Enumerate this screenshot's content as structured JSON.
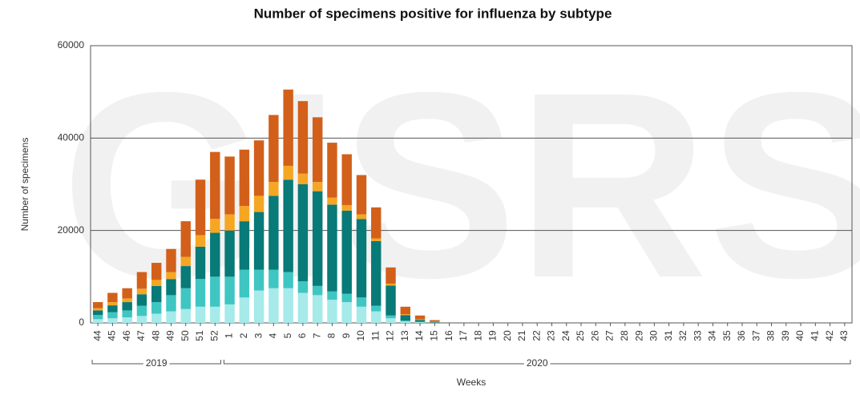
{
  "chart_data": {
    "type": "bar",
    "stacked": true,
    "title": "Number of specimens positive for influenza by subtype",
    "watermark": "GISRS",
    "y_label": "Number of specimens",
    "x_label": "Weeks",
    "year_groups": [
      {
        "label": "2019",
        "from": 0,
        "to": 8
      },
      {
        "label": "2020",
        "from": 9,
        "to": 51
      }
    ],
    "categories": [
      "44",
      "45",
      "46",
      "47",
      "48",
      "49",
      "50",
      "51",
      "52",
      "1",
      "2",
      "3",
      "4",
      "5",
      "6",
      "7",
      "8",
      "9",
      "10",
      "11",
      "12",
      "13",
      "14",
      "15",
      "16",
      "17",
      "18",
      "19",
      "20",
      "21",
      "22",
      "23",
      "24",
      "25",
      "26",
      "27",
      "28",
      "29",
      "30",
      "31",
      "32",
      "33",
      "34",
      "35",
      "36",
      "37",
      "38",
      "39",
      "40",
      "41",
      "42",
      "43"
    ],
    "series": [
      {
        "color": "#a6eaea",
        "values": [
          800,
          1000,
          1200,
          1500,
          2000,
          2500,
          3000,
          3500,
          3500,
          4000,
          5500,
          7000,
          7500,
          7500,
          6500,
          6000,
          5000,
          4500,
          3500,
          2500,
          1000,
          300,
          150,
          50,
          0,
          0,
          0,
          0,
          0,
          0,
          0,
          0,
          0,
          0,
          0,
          0,
          0,
          0,
          0,
          0,
          0,
          0,
          0,
          0,
          0,
          0,
          0,
          0,
          0,
          0,
          0,
          0
        ]
      },
      {
        "color": "#3fc6c2",
        "values": [
          900,
          1300,
          1500,
          2200,
          2500,
          3500,
          4500,
          6000,
          6500,
          6000,
          6000,
          4500,
          4000,
          3500,
          2500,
          2000,
          1800,
          1800,
          2000,
          1200,
          600,
          200,
          100,
          50,
          0,
          0,
          0,
          0,
          0,
          0,
          0,
          0,
          0,
          0,
          0,
          0,
          0,
          0,
          0,
          0,
          0,
          0,
          0,
          0,
          0,
          0,
          0,
          0,
          0,
          0,
          0,
          0
        ]
      },
      {
        "color": "#087a78",
        "values": [
          1000,
          1500,
          1800,
          2500,
          3500,
          3500,
          4800,
          7000,
          9500,
          10000,
          10500,
          12500,
          16000,
          20000,
          21000,
          20500,
          18800,
          18000,
          17000,
          14000,
          6500,
          1200,
          400,
          100,
          0,
          0,
          0,
          0,
          0,
          0,
          0,
          0,
          0,
          0,
          0,
          0,
          0,
          0,
          0,
          0,
          0,
          0,
          0,
          0,
          0,
          0,
          0,
          0,
          0,
          0,
          0,
          0
        ]
      },
      {
        "color": "#f5a623",
        "values": [
          500,
          700,
          800,
          1200,
          1300,
          1500,
          2000,
          2500,
          3000,
          3500,
          3300,
          3500,
          3000,
          3000,
          2300,
          2000,
          1500,
          1200,
          1000,
          600,
          400,
          200,
          100,
          50,
          0,
          0,
          0,
          0,
          0,
          0,
          0,
          0,
          0,
          0,
          0,
          0,
          0,
          0,
          0,
          0,
          0,
          0,
          0,
          0,
          0,
          0,
          0,
          0,
          0,
          0,
          0,
          0
        ]
      },
      {
        "color": "#d2601a",
        "values": [
          1300,
          2000,
          2200,
          3600,
          3700,
          5000,
          7700,
          12000,
          14500,
          12500,
          12200,
          12000,
          14500,
          16500,
          15700,
          14000,
          11900,
          11000,
          8500,
          6700,
          3500,
          1600,
          850,
          350,
          0,
          0,
          0,
          0,
          0,
          0,
          0,
          0,
          0,
          0,
          0,
          0,
          0,
          0,
          0,
          0,
          0,
          0,
          0,
          0,
          0,
          0,
          0,
          0,
          0,
          0,
          0,
          0
        ]
      }
    ],
    "ylim": [
      0,
      60000
    ],
    "yticks": [
      0,
      20000,
      40000,
      60000
    ],
    "grid": true
  }
}
